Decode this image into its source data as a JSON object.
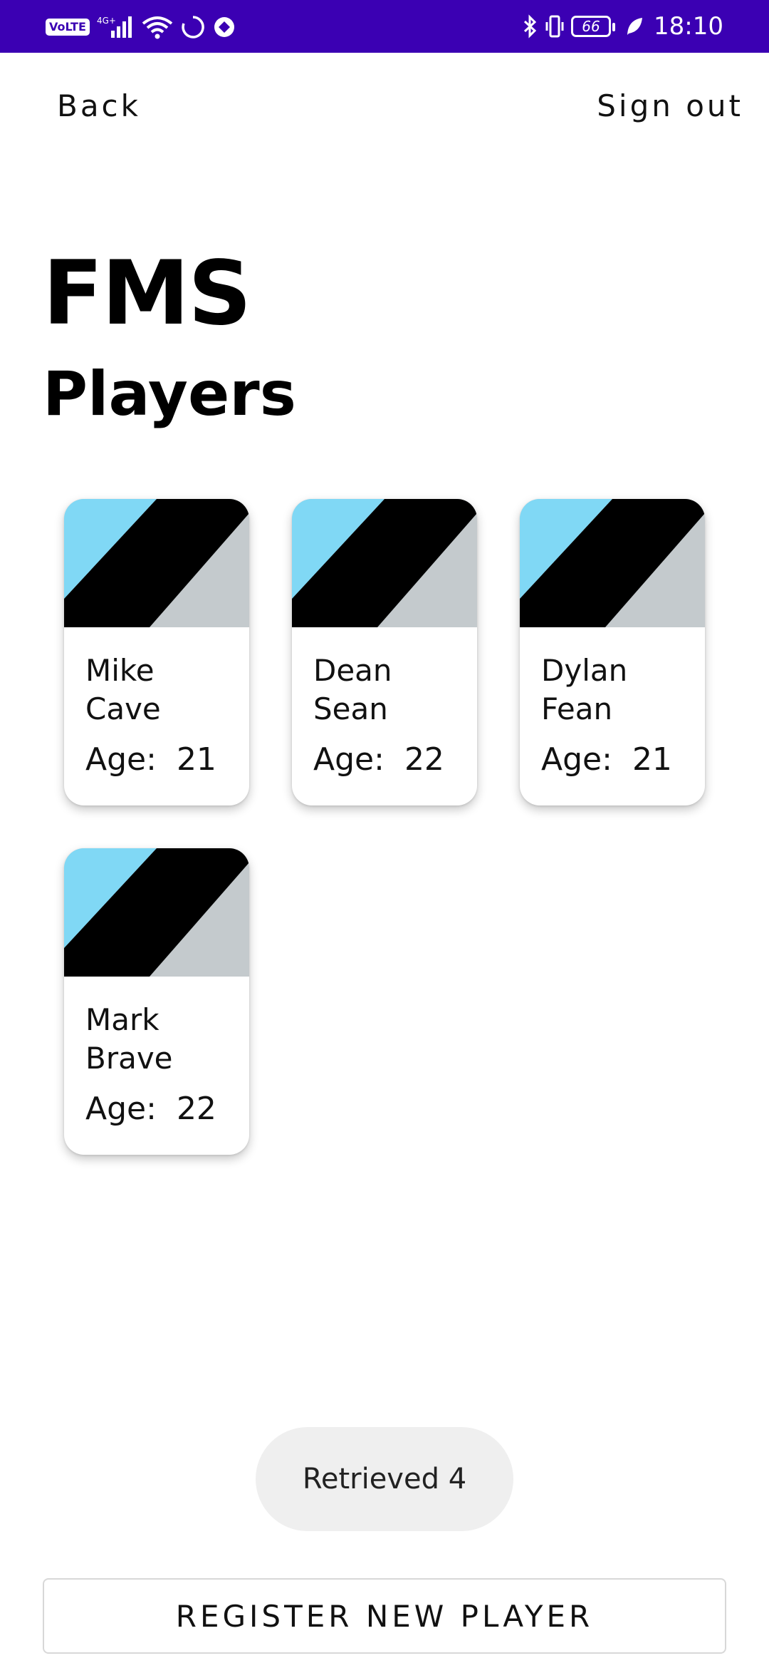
{
  "status_bar": {
    "network_badge": "VoLTE",
    "network_type": "4G+",
    "battery_level": "66",
    "time": "18:10",
    "icons": [
      "volte-icon",
      "signal-icon",
      "wifi-icon",
      "loading-icon",
      "app-icon",
      "bluetooth-icon",
      "vibrate-icon",
      "battery-icon",
      "leaf-icon"
    ]
  },
  "nav": {
    "back_label": "Back",
    "signout_label": "Sign out"
  },
  "header": {
    "title": "FMS",
    "subtitle": "Players"
  },
  "players": [
    {
      "first": "Mike",
      "last": "Cave",
      "age_label": "Age:",
      "age": "21"
    },
    {
      "first": "Dean",
      "last": "Sean",
      "age_label": "Age:",
      "age": "22"
    },
    {
      "first": "Dylan",
      "last": "Fean",
      "age_label": "Age:",
      "age": "21"
    },
    {
      "first": "Mark",
      "last": "Brave",
      "age_label": "Age:",
      "age": "22"
    }
  ],
  "toast": {
    "text": "Retrieved 4"
  },
  "footer": {
    "register_label": "REGISTER NEW PLAYER"
  },
  "colors": {
    "status_bar_bg": "#3b00b3",
    "image_sky": "#80d8f5",
    "image_stripe": "#000000",
    "image_ground": "#c4cacd"
  }
}
